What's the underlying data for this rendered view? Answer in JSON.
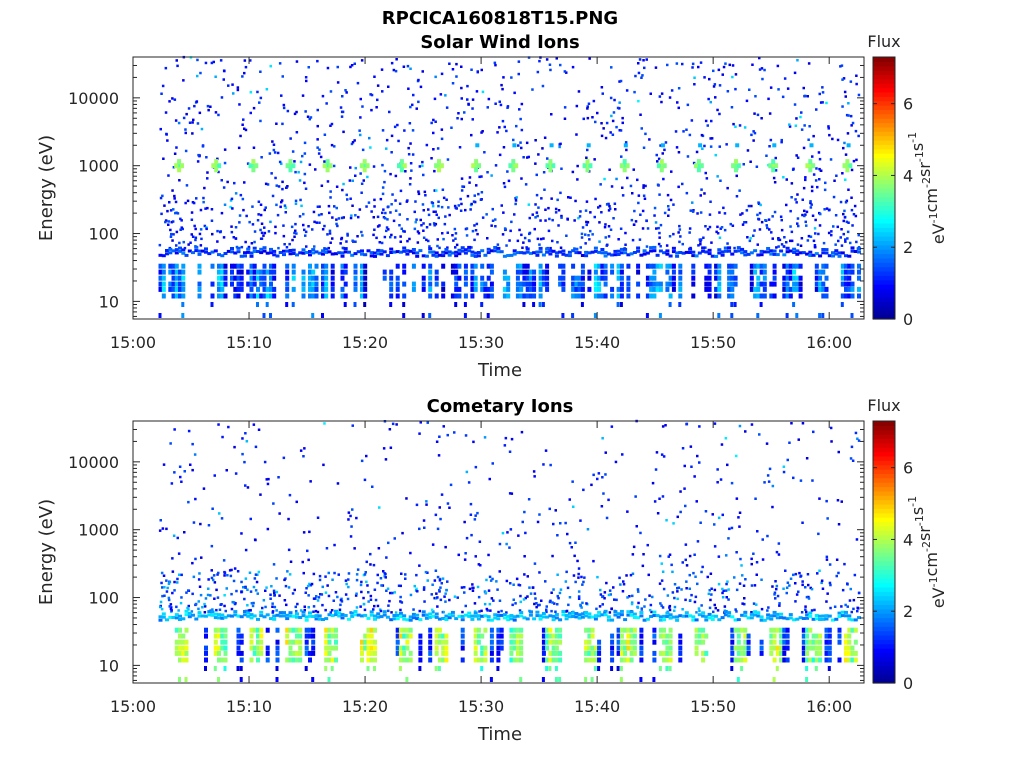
{
  "figure_title": "RPCICA160818T15.PNG",
  "colors": {
    "axis": "#262626",
    "colormap": [
      "#00008f",
      "#0000ff",
      "#0080ff",
      "#00ffff",
      "#80ff80",
      "#ffff00",
      "#ff8000",
      "#ff0000",
      "#800000"
    ]
  },
  "chart_data": [
    {
      "type": "heatmap",
      "title": "Solar Wind Ions",
      "xlabel": "Time",
      "ylabel": "Energy (eV)",
      "xticks": [
        "15:00",
        "15:10",
        "15:20",
        "15:30",
        "15:40",
        "15:50",
        "16:00"
      ],
      "xlim_minutes": [
        0,
        63
      ],
      "yticks": [
        "10",
        "100",
        "1000",
        "10000"
      ],
      "ylim": [
        5.5,
        40000
      ],
      "yscale": "log",
      "colorbar": {
        "title": "Flux",
        "ticks": [
          "0",
          "2",
          "4",
          "6"
        ],
        "range": [
          0,
          7.3
        ],
        "label_parts": [
          "eV",
          "-1",
          "cm",
          "-2",
          "sr",
          "-1",
          "s",
          "-1"
        ]
      },
      "data_span_minutes": [
        2.2,
        62.5
      ],
      "bands": [
        {
          "feature": "peak",
          "energy_eV": 1000,
          "flux": 3.6,
          "period_min": 3.2,
          "start_min": 3.8
        },
        {
          "feature": "secondary peak",
          "energy_eV": 2000,
          "flux": 2.2,
          "start_min": 29.5
        },
        {
          "feature": "low-energy line",
          "energy_eV": 50,
          "flux": 1.3
        },
        {
          "feature": "lowest bins",
          "energy_eV": [
            10,
            30
          ],
          "flux": 1.5
        }
      ]
    },
    {
      "type": "heatmap",
      "title": "Cometary Ions",
      "xlabel": "Time",
      "ylabel": "Energy (eV)",
      "xticks": [
        "15:00",
        "15:10",
        "15:20",
        "15:30",
        "15:40",
        "15:50",
        "16:00"
      ],
      "xlim_minutes": [
        0,
        63
      ],
      "yticks": [
        "10",
        "100",
        "1000",
        "10000"
      ],
      "ylim": [
        5.5,
        40000
      ],
      "yscale": "log",
      "colorbar": {
        "title": "Flux",
        "ticks": [
          "0",
          "2",
          "4",
          "6"
        ],
        "range": [
          0,
          7.3
        ],
        "label_parts": [
          "eV",
          "-1",
          "cm",
          "-2",
          "sr",
          "-1",
          "s",
          "-1"
        ]
      },
      "data_span_minutes": [
        2.2,
        62.5
      ],
      "bands": [
        {
          "feature": "low-energy line",
          "energy_eV": 50,
          "flux": 2.2
        },
        {
          "feature": "low-energy blocks",
          "energy_eV": [
            10,
            30
          ],
          "flux": 3.3,
          "period_min": 3.2,
          "start_min": 3.5
        },
        {
          "feature": "scattered",
          "energy_eV": [
            60,
            30000
          ],
          "flux": 0.9
        }
      ]
    }
  ]
}
